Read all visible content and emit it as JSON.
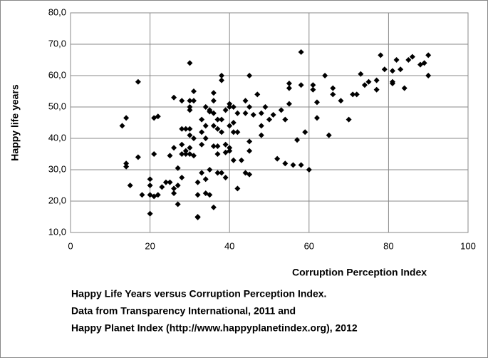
{
  "chart_data": {
    "type": "scatter",
    "x_label": "Corruption Perception Index",
    "y_label": "Happy life years",
    "caption": [
      "Happy Life Years versus Corruption Perception Index.",
      "Data from Transparency International, 2011 and",
      "Happy Planet Index (http://www.happyplanetindex.org), 2012"
    ],
    "color": "#000000",
    "grid": true,
    "xlim": [
      0,
      100
    ],
    "xticks": [
      0,
      20,
      40,
      60,
      80,
      100
    ],
    "ylim": [
      10,
      80
    ],
    "yticks": [
      {
        "value": 10,
        "label": "10,0"
      },
      {
        "value": 20,
        "label": "20,0"
      },
      {
        "value": 30,
        "label": "30,0"
      },
      {
        "value": 40,
        "label": "40,0"
      },
      {
        "value": 50,
        "label": "50,0"
      },
      {
        "value": 60,
        "label": "60,0"
      },
      {
        "value": 70,
        "label": "70,0"
      },
      {
        "value": 80,
        "label": "80,0"
      }
    ],
    "x": [
      13,
      14,
      14,
      14,
      15,
      17,
      17,
      18,
      20,
      20,
      20,
      20,
      21,
      21,
      21,
      22,
      22,
      23,
      24,
      25,
      25,
      26,
      26,
      26,
      26,
      27,
      27,
      27,
      28,
      28,
      28,
      28,
      28,
      29,
      29,
      29,
      30,
      30,
      30,
      30,
      30,
      30,
      30,
      30,
      31,
      31,
      31,
      31,
      32,
      32,
      32,
      32,
      33,
      33,
      33,
      33,
      34,
      34,
      34,
      34,
      34,
      35,
      35,
      35,
      35,
      36,
      36,
      36,
      36,
      36,
      36,
      37,
      37,
      37,
      37,
      37,
      38,
      38,
      38,
      38,
      38,
      39,
      39,
      39,
      39,
      40,
      40,
      40,
      40,
      40,
      41,
      41,
      41,
      41,
      42,
      42,
      42,
      43,
      44,
      44,
      44,
      45,
      45,
      45,
      45,
      45,
      46,
      47,
      48,
      48,
      48,
      49,
      50,
      51,
      52,
      53,
      54,
      54,
      55,
      55,
      55,
      56,
      57,
      58,
      58,
      58,
      59,
      60,
      61,
      61,
      62,
      62,
      64,
      65,
      66,
      66,
      68,
      70,
      71,
      72,
      73,
      74,
      75,
      77,
      77,
      78,
      79,
      81,
      81,
      81,
      82,
      83,
      84,
      85,
      86,
      88,
      89,
      90,
      90
    ],
    "values": [
      44,
      46.5,
      32,
      31,
      25,
      58,
      34,
      22,
      27,
      25,
      22,
      16,
      46.5,
      35,
      21.5,
      47,
      22,
      24.5,
      26,
      34.5,
      26,
      53,
      37,
      24,
      22.5,
      25,
      19,
      30.5,
      52,
      43,
      38,
      35,
      27.5,
      43,
      36,
      35,
      64,
      52,
      50,
      49,
      43,
      41,
      37,
      35,
      55,
      52,
      40,
      34.5,
      15,
      14.8,
      26,
      22,
      46,
      42,
      38,
      29,
      50,
      44,
      40,
      27,
      22.5,
      49,
      48.5,
      30,
      22,
      54.5,
      52,
      48,
      44,
      37.5,
      18,
      46,
      43,
      37.5,
      35,
      29,
      60,
      58.5,
      46,
      42,
      29,
      49,
      38,
      35.5,
      27.5,
      51,
      50,
      44,
      37,
      36,
      50,
      45,
      42,
      33,
      48,
      42,
      24,
      33,
      52,
      48,
      29,
      60,
      50,
      39,
      36,
      28.5,
      47.5,
      54,
      48,
      44,
      41,
      50,
      46,
      47.5,
      33.5,
      49,
      32,
      46,
      57.5,
      56,
      51,
      31.5,
      39.5,
      67.5,
      57,
      31.5,
      42,
      30,
      57,
      55.5,
      51.5,
      46.5,
      60,
      41,
      56,
      54,
      52,
      46,
      54,
      54,
      60.5,
      57,
      58,
      58.5,
      55.5,
      66.5,
      62,
      61.5,
      58,
      57.5,
      65,
      62,
      56,
      65,
      66,
      63.5,
      64,
      66.5,
      60
    ]
  }
}
